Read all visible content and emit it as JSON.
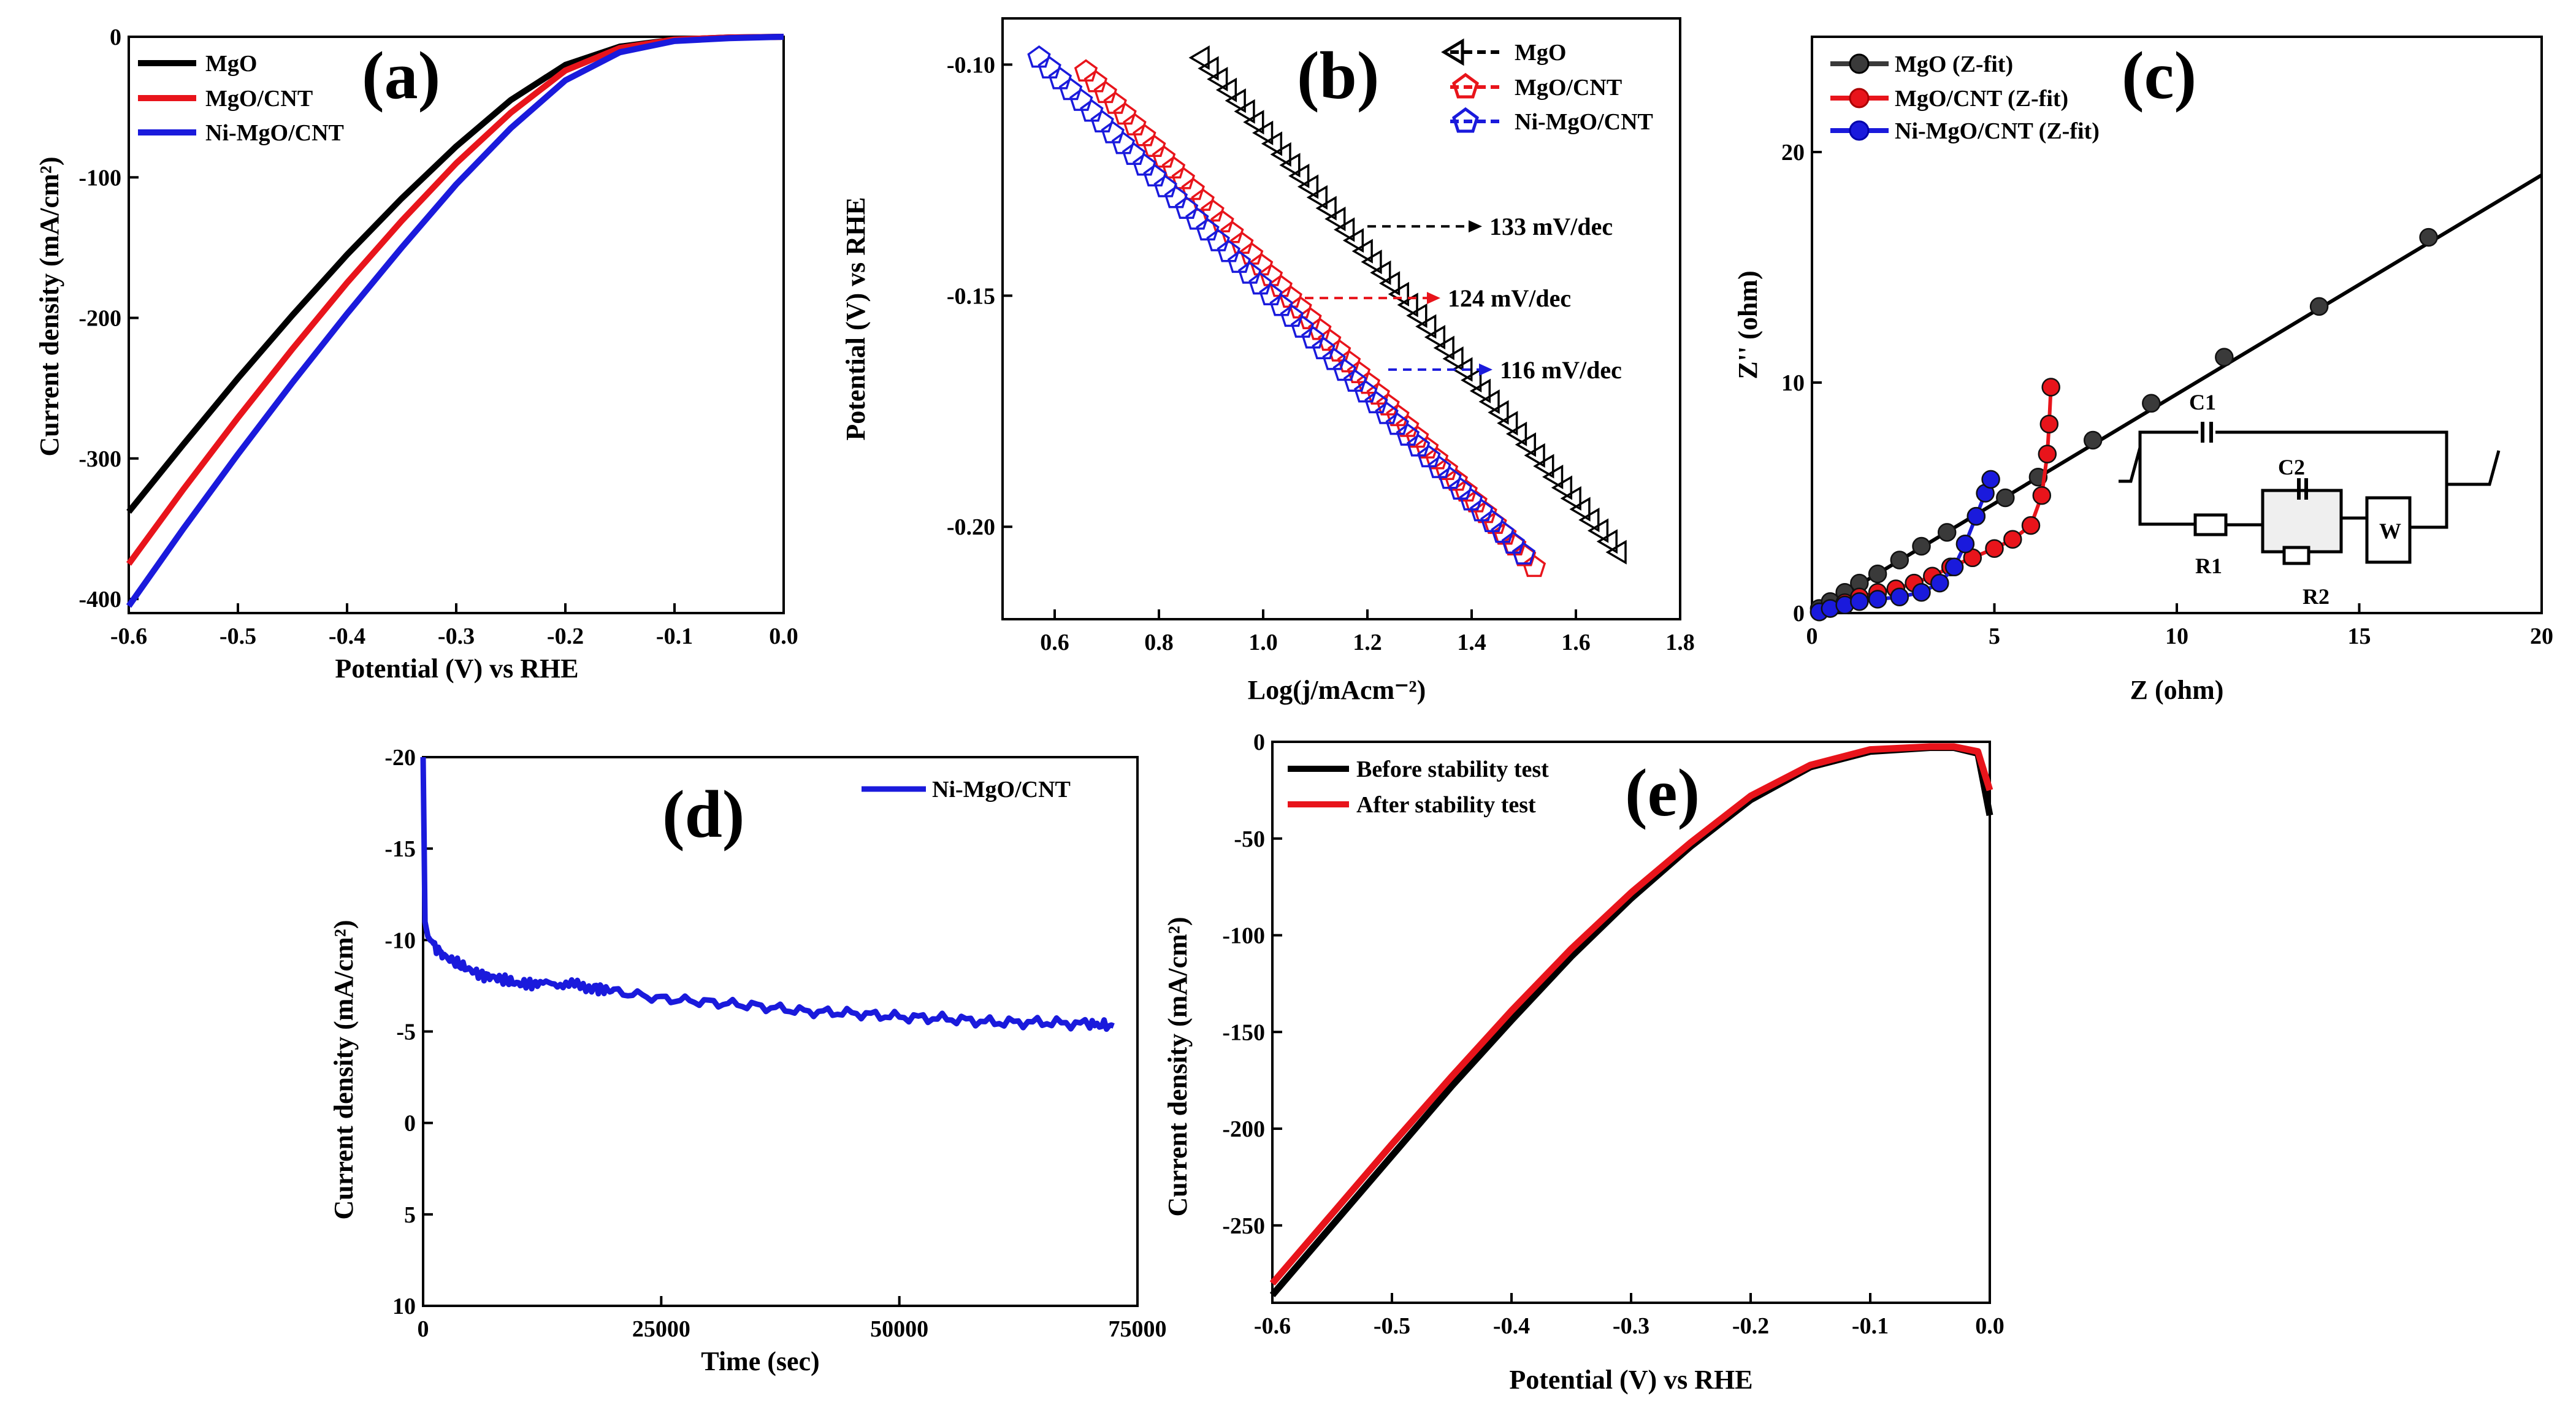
{
  "colors": {
    "black": "#000000",
    "red": "#e8141b",
    "blue": "#1a1adc",
    "gray": "#3a3a3a"
  },
  "chart_data": [
    {
      "id": "a",
      "type": "line",
      "panel_label": "(a)",
      "xlabel": "Potential (V) vs RHE",
      "ylabel": "Current density (mA/cm²)",
      "xlim": [
        -0.6,
        0.0
      ],
      "ylim": [
        -410,
        0
      ],
      "xticks": [
        -0.6,
        -0.5,
        -0.4,
        -0.3,
        -0.2,
        -0.1,
        0.0
      ],
      "xtick_labels": [
        "-0.6",
        "-0.5",
        "-0.4",
        "-0.3",
        "-0.2",
        "-0.1",
        "0.0"
      ],
      "yticks": [
        0,
        -100,
        -200,
        -300,
        -400
      ],
      "ytick_labels": [
        "0",
        "-100",
        "-200",
        "-300",
        "-400"
      ],
      "legend_position": "top-left",
      "series": [
        {
          "name": "MgO",
          "color": "#000000",
          "x": [
            -0.6,
            -0.55,
            -0.5,
            -0.45,
            -0.4,
            -0.35,
            -0.3,
            -0.25,
            -0.2,
            -0.15,
            -0.1,
            -0.05,
            0.0
          ],
          "y": [
            -338,
            -290,
            -243,
            -198,
            -155,
            -115,
            -78,
            -45,
            -20,
            -7,
            -2,
            -0.5,
            0
          ]
        },
        {
          "name": "MgO/CNT",
          "color": "#e8141b",
          "x": [
            -0.6,
            -0.55,
            -0.5,
            -0.45,
            -0.4,
            -0.35,
            -0.3,
            -0.25,
            -0.2,
            -0.15,
            -0.1,
            -0.05,
            0.0
          ],
          "y": [
            -375,
            -322,
            -271,
            -222,
            -175,
            -131,
            -90,
            -54,
            -24,
            -8,
            -2,
            -0.5,
            0
          ]
        },
        {
          "name": "Ni-MgO/CNT",
          "color": "#1a1adc",
          "x": [
            -0.6,
            -0.55,
            -0.5,
            -0.45,
            -0.4,
            -0.35,
            -0.3,
            -0.25,
            -0.2,
            -0.15,
            -0.1,
            -0.05,
            0.0
          ],
          "y": [
            -405,
            -350,
            -297,
            -246,
            -197,
            -150,
            -105,
            -65,
            -31,
            -11,
            -3,
            -1,
            0
          ]
        }
      ]
    },
    {
      "id": "b",
      "type": "scatter",
      "panel_label": "(b)",
      "xlabel": "Log(j/mAcm⁻²)",
      "ylabel": "Potential (V) vs RHE",
      "xlim": [
        0.5,
        1.8
      ],
      "ylim": [
        -0.22,
        -0.09
      ],
      "xticks": [
        0.6,
        0.8,
        1.0,
        1.2,
        1.4,
        1.6,
        1.8
      ],
      "xtick_labels": [
        "0.6",
        "0.8",
        "1.0",
        "1.2",
        "1.4",
        "1.6",
        "1.8"
      ],
      "yticks": [
        -0.1,
        -0.15,
        -0.2
      ],
      "ytick_labels": [
        "-0.10",
        "-0.15",
        "-0.20"
      ],
      "legend_position": "top-right",
      "series": [
        {
          "name": "MgO",
          "color": "#000000",
          "marker": "triangle-left",
          "x_start": 0.88,
          "y_start": -0.0985,
          "x_end": 1.68,
          "y_end": -0.2055
        },
        {
          "name": "MgO/CNT",
          "color": "#e8141b",
          "marker": "pentagon",
          "x_start": 0.66,
          "y_start": -0.1015,
          "x_end": 1.52,
          "y_end": -0.2087
        },
        {
          "name": "Ni-MgO/CNT",
          "color": "#1a1adc",
          "marker": "pentagon",
          "x_start": 0.57,
          "y_start": -0.0985,
          "x_end": 1.5,
          "y_end": -0.206
        }
      ],
      "annotations": [
        {
          "text": "133 mV/dec",
          "color": "#000000",
          "x_from": 1.2,
          "x_to": 1.42,
          "y": -0.135
        },
        {
          "text": "124 mV/dec",
          "color": "#e8141b",
          "x_from": 1.08,
          "x_to": 1.34,
          "y": -0.1505
        },
        {
          "text": "116 mV/dec",
          "color": "#1a1adc",
          "x_from": 1.24,
          "x_to": 1.44,
          "y": -0.166
        }
      ]
    },
    {
      "id": "c",
      "type": "scatter",
      "panel_label": "(c)",
      "xlabel": "Z (ohm)",
      "ylabel": "Z'' (ohm)",
      "xlim": [
        0,
        20
      ],
      "ylim": [
        0,
        25
      ],
      "xticks": [
        0,
        5,
        10,
        15,
        20
      ],
      "xtick_labels": [
        "0",
        "5",
        "10",
        "15",
        "20"
      ],
      "yticks": [
        0,
        10,
        20
      ],
      "ytick_labels": [
        "0",
        "10",
        "20"
      ],
      "legend_position": "top-left",
      "circuit_labels": [
        "C1",
        "C2",
        "R1",
        "R2",
        "W"
      ],
      "series": [
        {
          "name": "MgO (Z-fit)",
          "color": "#3a3a3a",
          "line_x": [
            0,
            20
          ],
          "line_y": [
            0,
            19
          ],
          "points_x": [
            0.2,
            0.5,
            0.9,
            1.3,
            1.8,
            2.4,
            3.0,
            3.7,
            4.5,
            5.3,
            6.2,
            7.7,
            9.3,
            11.3,
            13.9,
            16.9
          ],
          "points_y": [
            0.2,
            0.5,
            0.9,
            1.3,
            1.7,
            2.3,
            2.9,
            3.5,
            4.2,
            5.0,
            5.9,
            7.5,
            9.1,
            11.1,
            13.3,
            16.3
          ]
        },
        {
          "name": "MgO/CNT (Z-fit)",
          "color": "#e8141b",
          "points_x": [
            0.2,
            0.5,
            0.9,
            1.3,
            1.8,
            2.3,
            2.8,
            3.3,
            3.8,
            4.4,
            5.0,
            5.5,
            6.0,
            6.3,
            6.45,
            6.5,
            6.55
          ],
          "points_y": [
            0.05,
            0.2,
            0.45,
            0.7,
            0.9,
            1.05,
            1.3,
            1.6,
            2.0,
            2.4,
            2.8,
            3.2,
            3.8,
            5.1,
            6.9,
            8.2,
            9.8
          ]
        },
        {
          "name": "Ni-MgO/CNT (Z-fit)",
          "color": "#1a1adc",
          "points_x": [
            0.2,
            0.5,
            0.9,
            1.3,
            1.8,
            2.4,
            3.0,
            3.5,
            3.9,
            4.2,
            4.5,
            4.75,
            4.9
          ],
          "points_y": [
            0.05,
            0.2,
            0.35,
            0.5,
            0.6,
            0.7,
            0.9,
            1.3,
            2.0,
            3.0,
            4.2,
            5.2,
            5.8
          ]
        }
      ]
    },
    {
      "id": "d",
      "type": "line",
      "panel_label": "(d)",
      "xlabel": "Time (sec)",
      "ylabel": "Current density (mA/cm²)",
      "xlim": [
        0,
        75000
      ],
      "ylim": [
        10,
        -20
      ],
      "xticks": [
        0,
        25000,
        50000,
        75000
      ],
      "xtick_labels": [
        "0",
        "25000",
        "50000",
        "75000"
      ],
      "yticks": [
        -20,
        -15,
        -10,
        -5,
        0,
        5,
        10
      ],
      "ytick_labels": [
        "-20",
        "-15",
        "-10",
        "-5",
        "0",
        "5",
        "10"
      ],
      "legend_position": "top-right",
      "series": [
        {
          "name": "Ni-MgO/CNT",
          "color": "#1a1adc",
          "x": [
            0,
            200,
            500,
            1000,
            2000,
            4000,
            6000,
            8000,
            10000,
            12000,
            15000,
            18000,
            20000,
            25000,
            30000,
            35000,
            40000,
            45000,
            50000,
            55000,
            60000,
            65000,
            70000,
            72500
          ],
          "y": [
            -20,
            -11,
            -10.2,
            -9.8,
            -9.2,
            -8.6,
            -8.1,
            -7.9,
            -7.6,
            -7.6,
            -7.6,
            -7.4,
            -7.2,
            -6.8,
            -6.6,
            -6.4,
            -6.1,
            -6.0,
            -5.8,
            -5.7,
            -5.5,
            -5.5,
            -5.4,
            -5.3
          ]
        }
      ]
    },
    {
      "id": "e",
      "type": "line",
      "panel_label": "(e)",
      "xlabel": "Potential (V) vs RHE",
      "ylabel": "Current density (mA/cm²)",
      "xlim": [
        -0.6,
        0.0
      ],
      "ylim": [
        -290,
        0
      ],
      "xticks": [
        -0.6,
        -0.5,
        -0.4,
        -0.3,
        -0.2,
        -0.1,
        0.0
      ],
      "xtick_labels": [
        "-0.6",
        "-0.5",
        "-0.4",
        "-0.3",
        "-0.2",
        "-0.1",
        "0.0"
      ],
      "yticks": [
        0,
        -50,
        -100,
        -150,
        -200,
        -250
      ],
      "ytick_labels": [
        "0",
        "-50",
        "-100",
        "-150",
        "-200",
        "-250"
      ],
      "legend_position": "top-left",
      "series": [
        {
          "name": "Before stability test",
          "color": "#000000",
          "x": [
            -0.6,
            -0.55,
            -0.5,
            -0.45,
            -0.4,
            -0.35,
            -0.3,
            -0.25,
            -0.2,
            -0.15,
            -0.1,
            -0.05,
            -0.03,
            -0.01,
            0.0
          ],
          "y": [
            -286,
            -250,
            -214,
            -178,
            -144,
            -111,
            -81,
            -54,
            -30,
            -13,
            -5,
            -3,
            -3,
            -6,
            -38
          ]
        },
        {
          "name": "After stability test",
          "color": "#e8141b",
          "x": [
            -0.6,
            -0.55,
            -0.5,
            -0.45,
            -0.4,
            -0.35,
            -0.3,
            -0.25,
            -0.2,
            -0.15,
            -0.1,
            -0.05,
            -0.03,
            -0.01,
            0.0
          ],
          "y": [
            -280,
            -244,
            -208,
            -173,
            -139,
            -107,
            -78,
            -52,
            -28,
            -12,
            -4,
            -2.5,
            -2.5,
            -5,
            -25
          ]
        }
      ]
    }
  ]
}
